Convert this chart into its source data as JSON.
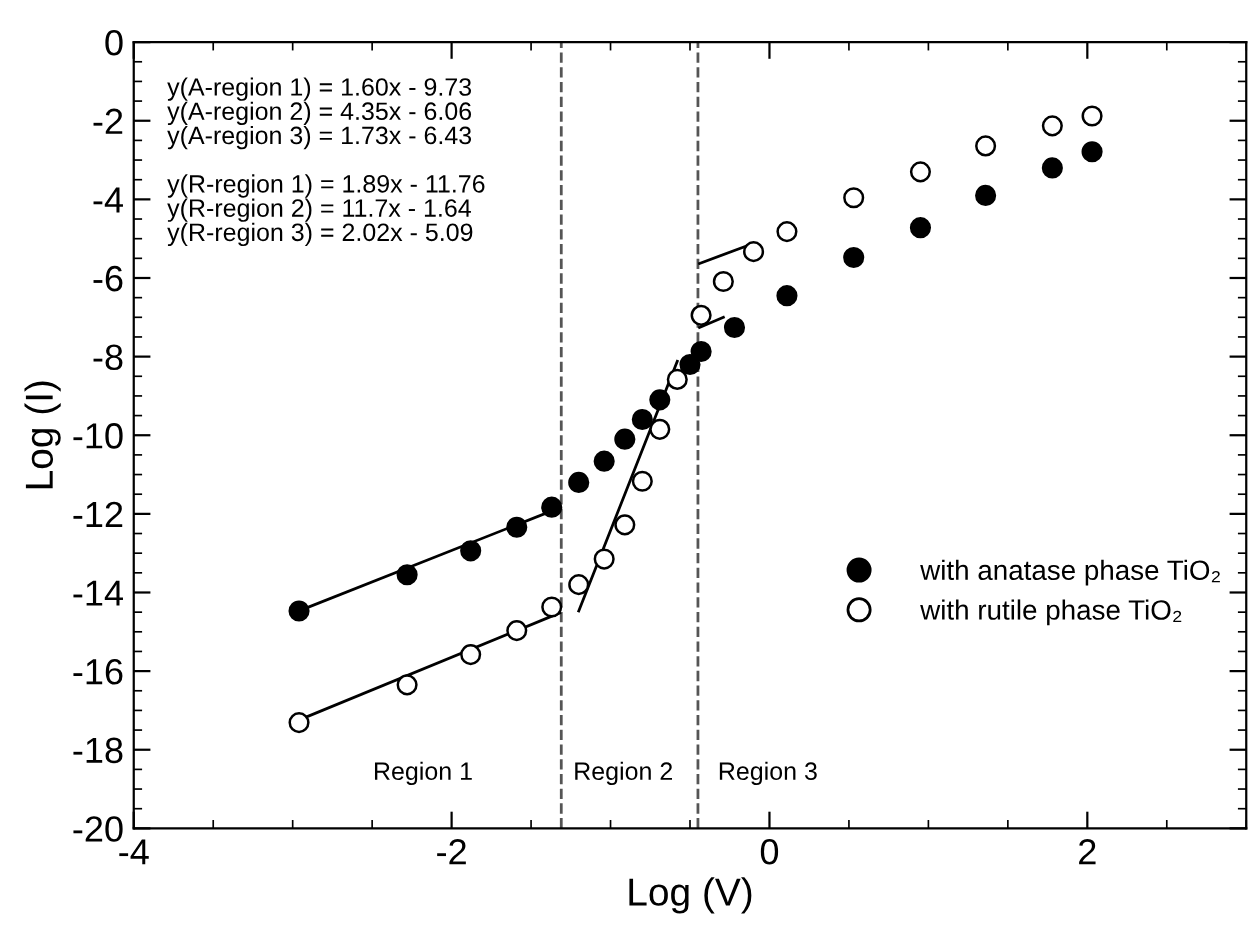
{
  "chart_data": {
    "type": "scatter",
    "xlabel": "Log (V)",
    "ylabel": "Log (I)",
    "xlim": [
      -4,
      3
    ],
    "ylim": [
      -20,
      0
    ],
    "xticks": [
      -4,
      -2,
      0,
      2
    ],
    "yticks": [
      -20,
      -18,
      -16,
      -14,
      -12,
      -10,
      -8,
      -6,
      -4,
      -2,
      0
    ],
    "grid": false,
    "legend": "right",
    "series": [
      {
        "name": "with anatase phase TiO₂",
        "color": "#000000",
        "marker": "circle",
        "x": [
          -2.96,
          -2.28,
          -1.88,
          -1.59,
          -1.37,
          -1.2,
          -1.04,
          -0.91,
          -0.8,
          -0.69,
          -0.58,
          -0.5,
          -0.43,
          -0.22,
          0.11,
          0.53,
          0.95,
          1.36,
          1.78,
          2.03
        ],
        "values": [
          -14.47,
          -13.55,
          -12.94,
          -12.34,
          -11.83,
          -11.2,
          -10.66,
          -10.1,
          -9.6,
          -9.1,
          null,
          -8.2,
          -7.87,
          -7.26,
          -6.45,
          -5.48,
          -4.72,
          -3.9,
          -3.2,
          -2.79
        ]
      },
      {
        "name": "with rutile phase TiO₂",
        "color": "#ffffff",
        "marker": "circle",
        "x": [
          -2.96,
          -2.28,
          -1.88,
          -1.59,
          -1.37,
          -1.2,
          -1.04,
          -0.91,
          -0.8,
          -0.69,
          -0.58,
          -0.43,
          -0.29,
          -0.1,
          0.11,
          0.53,
          0.95,
          1.36,
          1.78,
          2.03
        ],
        "values": [
          -17.31,
          -16.35,
          -15.58,
          -14.97,
          -14.37,
          -13.8,
          -13.15,
          -12.28,
          -11.17,
          -9.85,
          -8.58,
          -6.95,
          -6.09,
          -5.33,
          -4.82,
          -3.96,
          -3.3,
          -2.64,
          -2.13,
          -1.88
        ]
      },
      {
        "type": "line",
        "color": "#000000",
        "x": [
          -3.0,
          -1.33
        ],
        "values": [
          -14.53,
          -11.86
        ]
      },
      {
        "type": "line",
        "color": "#000000",
        "x": [
          -3.0,
          -1.32
        ],
        "values": [
          -17.31,
          -14.52
        ]
      },
      {
        "type": "line",
        "color": "#000000",
        "x": [
          -1.2,
          -0.58
        ],
        "values": [
          -14.47,
          -8.12
        ]
      },
      {
        "type": "line",
        "color": "#000000",
        "x": [
          -0.44,
          -0.14
        ],
        "values": [
          -5.63,
          -5.18
        ]
      },
      {
        "type": "line",
        "color": "#000000",
        "x": [
          -0.44,
          -0.29
        ],
        "values": [
          -7.26,
          -7.0
        ]
      }
    ],
    "ref_lines": [
      {
        "axis": "x",
        "value": -1.31,
        "color": "#555555",
        "line_style": "dashed"
      },
      {
        "axis": "x",
        "value": -0.45,
        "color": "#555555",
        "line_style": "dashed"
      }
    ],
    "annotations": [
      "y(A-region 1) = 1.60x - 9.73\ny(A-region 2) = 4.35x - 6.06\ny(A-region 3) = 1.73x - 6.43\n\ny(R-region 1) = 1.89x - 11.76\ny(R-region 2) = 11.7x - 1.64\ny(R-region 3) = 2.02x - 5.09",
      "Region 1",
      "Region 2",
      "Region 3"
    ]
  }
}
